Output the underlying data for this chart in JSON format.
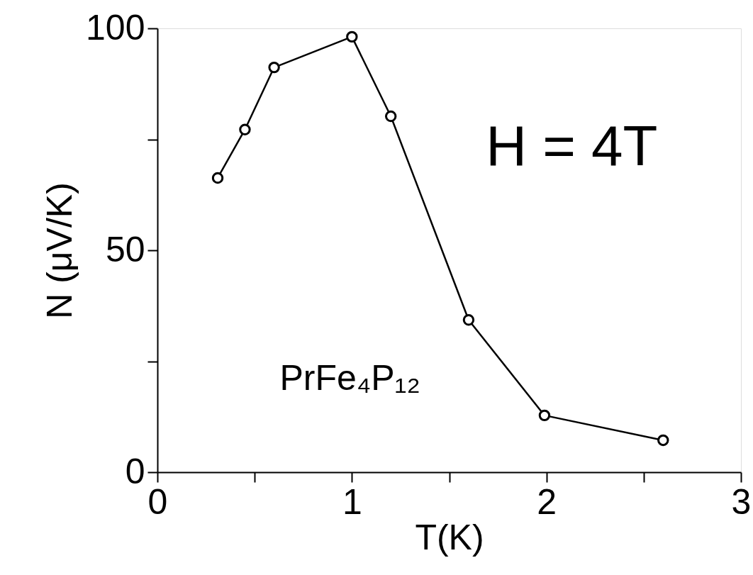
{
  "chart_data": {
    "type": "line",
    "xlabel": "T(K)",
    "ylabel": "N (μV/K)",
    "x": [
      0.31,
      0.45,
      0.6,
      1.0,
      1.2,
      1.6,
      1.99,
      2.6
    ],
    "series": [
      {
        "color": "#000000",
        "values": [
          66.3,
          77.2,
          91.2,
          98.1,
          80.2,
          34.3,
          12.8,
          7.2
        ]
      }
    ],
    "xlim": [
      0,
      3
    ],
    "ylim": [
      0,
      100
    ],
    "xticks": [
      0,
      {
        "value": 0.5,
        "label": null
      },
      1,
      {
        "value": 1.5,
        "label": null
      },
      2,
      {
        "value": 2.5,
        "label": null
      },
      3
    ],
    "yticks": [
      0,
      {
        "value": 25,
        "label": null
      },
      50,
      {
        "value": 75,
        "label": null
      },
      100
    ],
    "annotations": [
      "H = 4T",
      "PrFe₄P₁₂"
    ],
    "marker": "circle",
    "line_style": "solid",
    "grid": false
  }
}
